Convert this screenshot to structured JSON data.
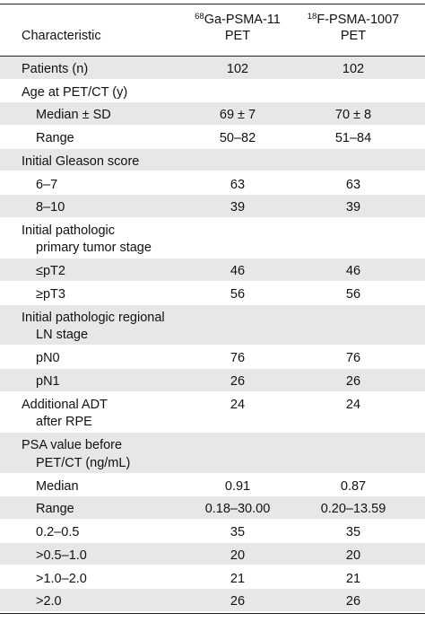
{
  "table": {
    "header": [
      "Characteristic",
      {
        "sup": "68",
        "name": "Ga-PSMA-11",
        "line2": "PET"
      },
      {
        "sup": "18",
        "name": "F-PSMA-1007",
        "line2": "PET"
      }
    ],
    "rows": [
      {
        "label": [
          "Patients (n)"
        ],
        "indent": false,
        "values": [
          "102",
          "102"
        ]
      },
      {
        "label": [
          "Age at PET/CT (y)"
        ],
        "indent": false
      },
      {
        "label": [
          "Median ± SD"
        ],
        "indent": true,
        "values": [
          "69 ± 7",
          "70 ± 8"
        ]
      },
      {
        "label": [
          "Range"
        ],
        "indent": true,
        "values": [
          "50–82",
          "51–84"
        ]
      },
      {
        "label": [
          "Initial Gleason score"
        ],
        "indent": false
      },
      {
        "label": [
          "6–7"
        ],
        "indent": true,
        "values": [
          "63",
          "63"
        ]
      },
      {
        "label": [
          "8–10"
        ],
        "indent": true,
        "values": [
          "39",
          "39"
        ]
      },
      {
        "label": [
          "Initial pathologic",
          "primary tumor stage"
        ],
        "indent": false
      },
      {
        "label": [
          "≤pT2"
        ],
        "indent": true,
        "values": [
          "46",
          "46"
        ]
      },
      {
        "label": [
          "≥pT3"
        ],
        "indent": true,
        "values": [
          "56",
          "56"
        ]
      },
      {
        "label": [
          "Initial pathologic regional",
          "LN stage"
        ],
        "indent": false
      },
      {
        "label": [
          "pN0"
        ],
        "indent": true,
        "values": [
          "76",
          "76"
        ]
      },
      {
        "label": [
          "pN1"
        ],
        "indent": true,
        "values": [
          "26",
          "26"
        ]
      },
      {
        "label": [
          "Additional ADT",
          "after RPE"
        ],
        "indent": false,
        "values": [
          "24",
          "24"
        ]
      },
      {
        "label": [
          "PSA value before",
          "PET/CT (ng/mL)"
        ],
        "indent": false
      },
      {
        "label": [
          "Median"
        ],
        "indent": true,
        "values": [
          "0.91",
          "0.87"
        ]
      },
      {
        "label": [
          "Range"
        ],
        "indent": true,
        "values": [
          "0.18–30.00",
          "0.20–13.59"
        ]
      },
      {
        "label": [
          "0.2–0.5"
        ],
        "indent": true,
        "values": [
          "35",
          "35"
        ]
      },
      {
        "label": [
          ">0.5–1.0"
        ],
        "indent": true,
        "values": [
          "20",
          "20"
        ]
      },
      {
        "label": [
          ">1.0–2.0"
        ],
        "indent": true,
        "values": [
          "21",
          "21"
        ]
      },
      {
        "label": [
          ">2.0"
        ],
        "indent": true,
        "values": [
          "26",
          "26"
        ]
      }
    ]
  }
}
